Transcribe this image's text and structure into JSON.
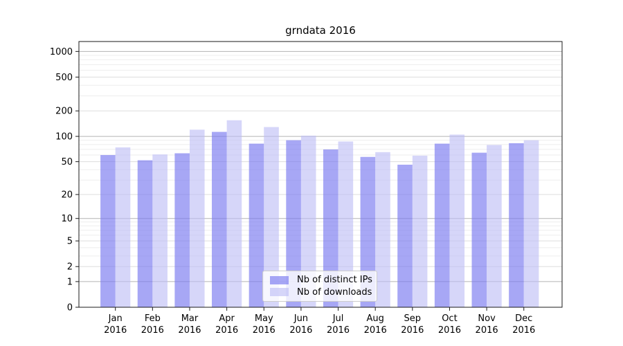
{
  "chart_data": {
    "type": "bar",
    "title": "grndata 2016",
    "xlabel": "",
    "ylabel": "",
    "y_scale": "symlog (position ~ log10(value+1))",
    "ylim": [
      0,
      1300
    ],
    "grid": true,
    "legend_position": "bottom-center-inside",
    "categories": [
      "Jan",
      "Feb",
      "Mar",
      "Apr",
      "May",
      "Jun",
      "Jul",
      "Aug",
      "Sep",
      "Oct",
      "Nov",
      "Dec"
    ],
    "year_label": "2016",
    "yticks_major": [
      0,
      1,
      2,
      5,
      10,
      20,
      50,
      100,
      200,
      500,
      1000
    ],
    "gridline_values_strong": [
      1,
      10,
      100,
      1000
    ],
    "gridline_values_medium": [
      2,
      5,
      20,
      50,
      200,
      500
    ],
    "gridline_values_minor": [
      3,
      4,
      6,
      7,
      8,
      9,
      30,
      40,
      60,
      70,
      80,
      90,
      300,
      400,
      600,
      700,
      800,
      900
    ],
    "series": [
      {
        "name": "Nb of distinct IPs",
        "color": "#7a7af0",
        "alpha": 0.66,
        "values": [
          60,
          52,
          63,
          113,
          82,
          90,
          70,
          57,
          46,
          82,
          64,
          83
        ]
      },
      {
        "name": "Nb of downloads",
        "color": "#bdbdf6",
        "alpha": 0.62,
        "values": [
          74,
          61,
          120,
          155,
          129,
          102,
          87,
          65,
          59,
          105,
          79,
          90
        ]
      }
    ],
    "colors": {
      "strong_grid": "#b3b3b3",
      "medium_grid": "#dddddd",
      "minor_grid": "#ededed",
      "spine": "#1a1a1a",
      "tick": "#1a1a1a"
    }
  }
}
